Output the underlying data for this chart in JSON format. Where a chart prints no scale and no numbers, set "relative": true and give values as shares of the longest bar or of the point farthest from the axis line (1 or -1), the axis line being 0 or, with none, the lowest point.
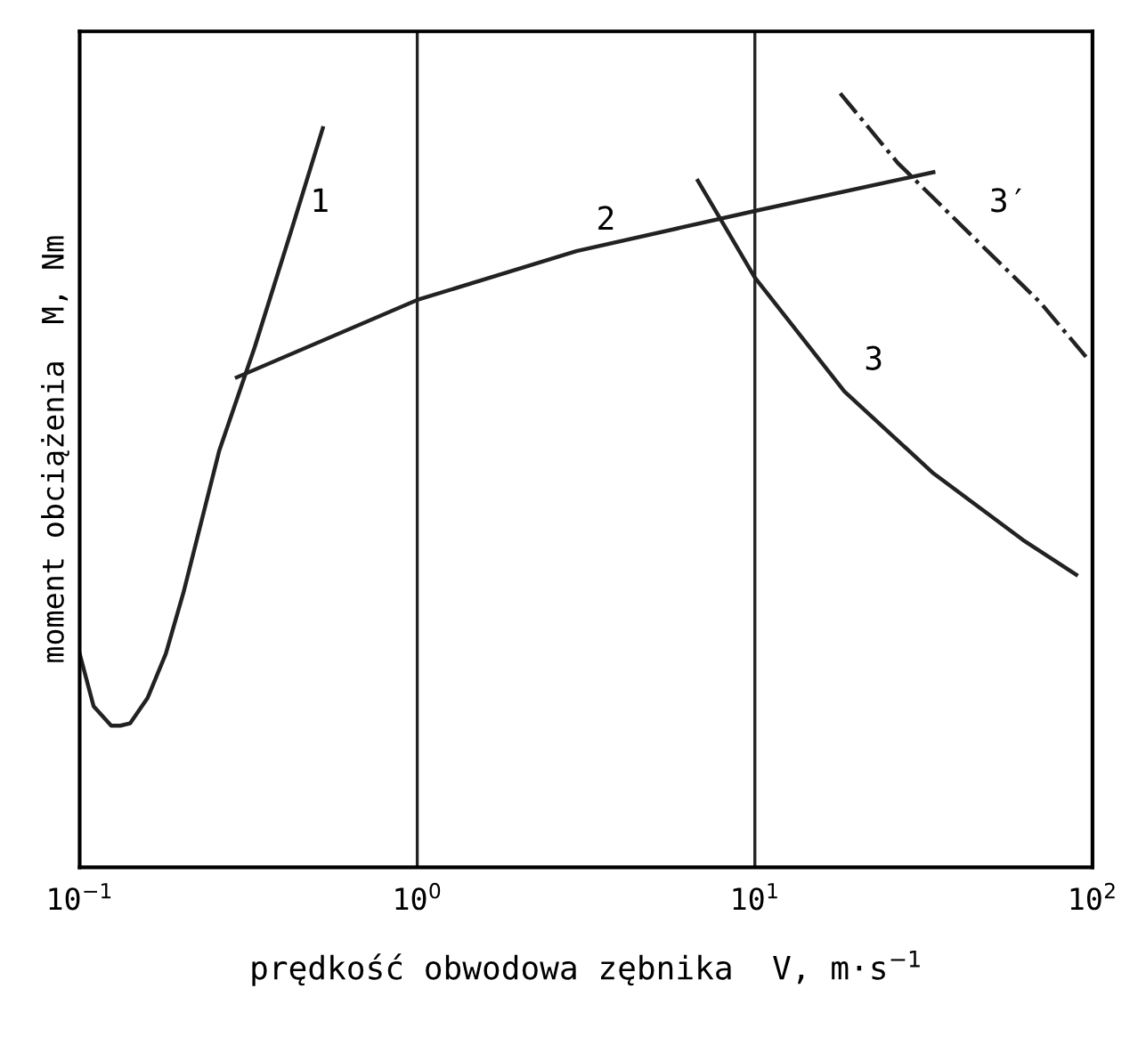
{
  "chart_data": {
    "type": "line",
    "relative": true,
    "log": "x",
    "xlabel": "prędkość obwodowa zębnika  V, m·s$^{−1}$",
    "ylabel": "moment obciążenia  M, Nm",
    "xlim": [
      0.1,
      100
    ],
    "xticks": [
      {
        "value": 0.1,
        "label": "10$^{−1}$"
      },
      {
        "value": 1,
        "label": "10$^{0}$"
      },
      {
        "value": 10,
        "label": "10$^{1}$"
      },
      {
        "value": 100,
        "label": "10$^{2}$"
      }
    ],
    "series": [
      {
        "color": "#222222",
        "line_style": "solid",
        "x": [
          0.1,
          0.11,
          0.124,
          0.132,
          0.141,
          0.159,
          0.18,
          0.203,
          0.259,
          0.33,
          0.421,
          0.525
        ],
        "values": [
          0.276,
          0.208,
          0.183,
          0.183,
          0.186,
          0.219,
          0.276,
          0.355,
          0.538,
          0.672,
          0.819,
          0.955
        ]
      },
      {
        "color": "#222222",
        "line_style": "solid",
        "x": [
          0.292,
          1,
          2.96,
          10,
          33.8
        ],
        "values": [
          0.633,
          0.733,
          0.796,
          0.848,
          0.898
        ]
      },
      {
        "color": "#222222",
        "line_style": "solid",
        "x": [
          6.78,
          10,
          18.4,
          33.8,
          62.2,
          89.5
        ],
        "values": [
          0.887,
          0.762,
          0.615,
          0.509,
          0.423,
          0.378
        ]
      },
      {
        "color": "#222222",
        "line_style": "dashdot",
        "x": [
          17.9,
          26.5,
          43.2,
          70.3,
          98
        ],
        "values": [
          1.0,
          0.91,
          0.819,
          0.729,
          0.654
        ]
      }
    ],
    "ref_lines": [
      {
        "axis": "x",
        "value": 1,
        "color": "#222222"
      },
      {
        "axis": "x",
        "value": 10,
        "color": "#222222"
      }
    ],
    "annotations": [
      {
        "text": "1",
        "x": 0.421,
        "y": 0.819
      },
      {
        "text": "2",
        "x": 2.96,
        "y": 0.796
      },
      {
        "text": "3",
        "x": 18.4,
        "y": 0.615
      },
      {
        "text": "3′",
        "x": 43.2,
        "y": 0.819
      }
    ]
  }
}
